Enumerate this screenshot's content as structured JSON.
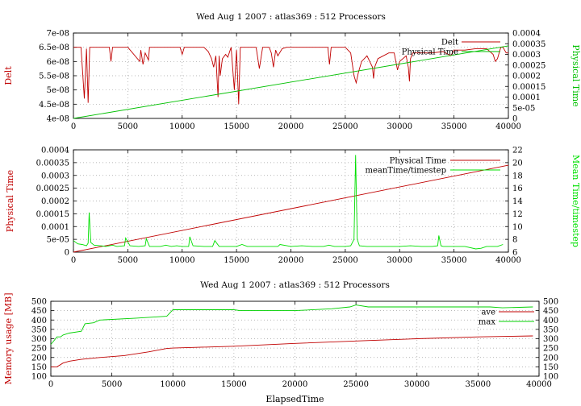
{
  "chart_data": [
    {
      "type": "line",
      "title": "Wed Aug 1 2007 : atlas369 : 512 Processors",
      "ylabel": "Delt",
      "y2label": "Physical Time",
      "xlim": [
        0,
        40000
      ],
      "ylim": [
        4e-08,
        7e-08
      ],
      "y2lim": [
        0,
        0.0004
      ],
      "x_ticks": [
        "0",
        "5000",
        "10000",
        "15000",
        "20000",
        "25000",
        "30000",
        "35000",
        "40000"
      ],
      "y_ticks": [
        "4e-08",
        "4.5e-08",
        "5e-08",
        "5.5e-08",
        "6e-08",
        "6.5e-08",
        "7e-08"
      ],
      "y2_ticks": [
        "0",
        "5e-05",
        "0.0001",
        "0.00015",
        "0.0002",
        "0.00025",
        "0.0003",
        "0.00035",
        "0.0004"
      ],
      "grid": true,
      "legend": "top-right",
      "series": [
        {
          "name": "Delt",
          "axis": "y",
          "color": "#c00000",
          "x": [
            0,
            700,
            1000,
            1200,
            1350,
            1500,
            2000,
            3300,
            3450,
            3600,
            5000,
            6100,
            6200,
            6400,
            6600,
            6900,
            7000,
            9800,
            10000,
            10200,
            12000,
            12400,
            12700,
            12900,
            13100,
            13300,
            13400,
            13500,
            13700,
            14000,
            14200,
            14500,
            14800,
            15000,
            15200,
            15350,
            15500,
            16800,
            17100,
            17400,
            18000,
            18200,
            18400,
            18600,
            18800,
            19200,
            19600,
            20000,
            22000,
            23400,
            23550,
            23700,
            25000,
            25500,
            25800,
            26000,
            26200,
            26500,
            27000,
            27500,
            27600,
            27700,
            28000,
            28500,
            29000,
            29500,
            29800,
            30000,
            30600,
            30800,
            30900,
            31000,
            31200,
            33000,
            34000,
            34700,
            35000,
            36000,
            37000,
            38000,
            38600,
            38800,
            39000,
            39300,
            39500,
            39800,
            40000
          ],
          "y": [
            6.5e-08,
            6.5e-08,
            4.7e-08,
            6.45e-08,
            4.55e-08,
            6.5e-08,
            6.5e-08,
            6.5e-08,
            6e-08,
            6.5e-08,
            6.5e-08,
            6e-08,
            6.4e-08,
            5.9e-08,
            6.3e-08,
            6.05e-08,
            6.5e-08,
            6.5e-08,
            6.25e-08,
            6.5e-08,
            6.5e-08,
            6.35e-08,
            6.1e-08,
            5.8e-08,
            6.2e-08,
            4.75e-08,
            6.2e-08,
            5.5e-08,
            6.1e-08,
            6.25e-08,
            6.15e-08,
            6.5e-08,
            5e-08,
            6.4e-08,
            4.5e-08,
            6.5e-08,
            6.5e-08,
            6.5e-08,
            5.75e-08,
            6.5e-08,
            6.5e-08,
            6.3e-08,
            5.8e-08,
            6.4e-08,
            6.2e-08,
            6.45e-08,
            6.5e-08,
            6.5e-08,
            6.5e-08,
            6.5e-08,
            5.9e-08,
            6.5e-08,
            6.5e-08,
            6.3e-08,
            5.5e-08,
            5.25e-08,
            5.6e-08,
            6e-08,
            6.2e-08,
            5.8e-08,
            5.4e-08,
            5.8e-08,
            6.1e-08,
            6.2e-08,
            6.3e-08,
            6.3e-08,
            5.7e-08,
            6e-08,
            6.2e-08,
            5.8e-08,
            5.3e-08,
            6.1e-08,
            6.3e-08,
            6.3e-08,
            6.35e-08,
            6.2e-08,
            6.4e-08,
            6.4e-08,
            6.45e-08,
            6.45e-08,
            6.25e-08,
            6e-08,
            6.1e-08,
            6.5e-08,
            6.5e-08,
            6.3e-08,
            6.3e-08
          ]
        },
        {
          "name": "Physical Time",
          "axis": "y2",
          "color": "#00c000",
          "x": [
            0,
            40000
          ],
          "y": [
            0,
            0.00034
          ]
        }
      ]
    },
    {
      "type": "line",
      "title": "",
      "ylabel": "Physical Time",
      "y2label": "Mean Time/timestep",
      "xlim": [
        0,
        40000
      ],
      "ylim": [
        0,
        0.0004
      ],
      "y2lim": [
        6,
        22
      ],
      "x_ticks": [
        "0",
        "5000",
        "10000",
        "15000",
        "20000",
        "25000",
        "30000",
        "35000",
        "40000"
      ],
      "y_ticks": [
        "0",
        "5e-05",
        "0.0001",
        "0.00015",
        "0.0002",
        "0.00025",
        "0.0003",
        "0.00035",
        "0.0004"
      ],
      "y2_ticks": [
        "6",
        "8",
        "10",
        "12",
        "14",
        "16",
        "18",
        "20",
        "22"
      ],
      "grid": true,
      "legend": "top-right",
      "series": [
        {
          "name": "Physical Time",
          "axis": "y",
          "color": "#c00000",
          "x": [
            0,
            40000
          ],
          "y": [
            0,
            0.00034
          ]
        },
        {
          "name": "meanTime/timestep",
          "axis": "y2",
          "color": "#00e000",
          "x": [
            0,
            400,
            800,
            1200,
            1350,
            1450,
            1600,
            1900,
            2500,
            3000,
            3600,
            4000,
            4700,
            4800,
            5200,
            6000,
            6600,
            6700,
            7000,
            8000,
            8500,
            9000,
            9500,
            10000,
            10600,
            10700,
            11000,
            12000,
            12800,
            13000,
            13400,
            14000,
            15000,
            15500,
            16000,
            17000,
            18000,
            18800,
            19000,
            20000,
            21000,
            22000,
            23000,
            23500,
            24000,
            25000,
            25500,
            25800,
            25950,
            26100,
            26300,
            27000,
            28000,
            29000,
            30000,
            31000,
            32000,
            33000,
            33500,
            33600,
            33800,
            34000,
            35000,
            36000,
            37000,
            37500,
            38000,
            38500,
            39000,
            39500
          ],
          "y": [
            7.8,
            7.3,
            7.2,
            7.0,
            7.4,
            12.2,
            7.5,
            7.1,
            7.0,
            6.9,
            7.1,
            6.9,
            7.0,
            8.2,
            7.0,
            6.9,
            7.0,
            8.1,
            6.9,
            6.9,
            7.1,
            6.9,
            7.0,
            6.9,
            6.9,
            8.4,
            7.0,
            6.9,
            6.9,
            7.8,
            6.9,
            6.9,
            6.9,
            7.2,
            6.9,
            6.9,
            6.9,
            6.9,
            7.2,
            6.9,
            7.0,
            6.9,
            6.9,
            7.1,
            6.9,
            6.9,
            7.0,
            8.0,
            21.2,
            8.0,
            7.0,
            6.9,
            6.9,
            6.9,
            6.9,
            7.0,
            6.9,
            6.9,
            7.0,
            8.6,
            7.0,
            6.9,
            6.9,
            6.9,
            6.5,
            6.6,
            6.9,
            6.9,
            6.9,
            7.2
          ]
        }
      ]
    },
    {
      "type": "line",
      "title": "Wed Aug 1 2007 : atlas369 : 512 Processors",
      "xlabel": "ElapsedTime",
      "ylabel": "Memory usage [MB]",
      "xlim": [
        0,
        40000
      ],
      "ylim": [
        100,
        500
      ],
      "y2lim": [
        100,
        500
      ],
      "x_ticks": [
        "0",
        "5000",
        "10000",
        "15000",
        "20000",
        "25000",
        "30000",
        "35000",
        "40000"
      ],
      "y_ticks": [
        "100",
        "150",
        "200",
        "250",
        "300",
        "350",
        "400",
        "450",
        "500"
      ],
      "y2_ticks": [
        "100",
        "150",
        "200",
        "250",
        "300",
        "350",
        "400",
        "450",
        "500"
      ],
      "grid": true,
      "legend": "top-right",
      "series": [
        {
          "name": "ave",
          "axis": "y",
          "color": "#c00000",
          "x": [
            0,
            500,
            1000,
            1500,
            2500,
            4000,
            6000,
            8000,
            9500,
            10000,
            15000,
            20000,
            25000,
            30000,
            35000,
            39500
          ],
          "y": [
            150,
            150,
            170,
            180,
            190,
            200,
            210,
            230,
            248,
            250,
            260,
            275,
            288,
            300,
            310,
            315
          ]
        },
        {
          "name": "max",
          "axis": "y",
          "color": "#00d000",
          "x": [
            0,
            200,
            500,
            800,
            1000,
            1500,
            2500,
            2800,
            3500,
            4000,
            7000,
            9500,
            10000,
            15000,
            15500,
            20000,
            23000,
            24500,
            25000,
            26000,
            30000,
            36000,
            37000,
            39500
          ],
          "y": [
            270,
            285,
            310,
            310,
            320,
            330,
            340,
            380,
            385,
            400,
            410,
            420,
            455,
            455,
            450,
            450,
            460,
            470,
            480,
            470,
            470,
            470,
            465,
            470
          ]
        }
      ]
    }
  ]
}
